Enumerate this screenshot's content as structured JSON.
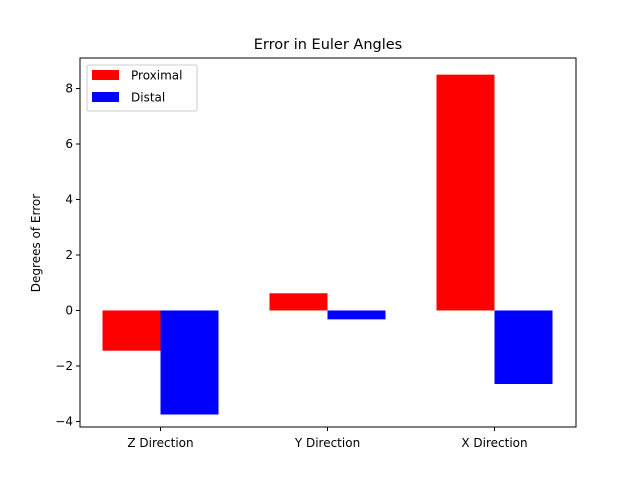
{
  "chart_data": {
    "type": "bar",
    "title": "Error in Euler Angles",
    "xlabel": "",
    "ylabel": "Degrees of Error",
    "categories": [
      "Z Direction",
      "Y Direction",
      "X Direction"
    ],
    "series": [
      {
        "name": "Proximal",
        "color": "#ff0000",
        "values": [
          -1.45,
          0.62,
          8.5
        ]
      },
      {
        "name": "Distal",
        "color": "#0000ff",
        "values": [
          -3.75,
          -0.32,
          -2.65
        ]
      }
    ],
    "ylim": [
      -4.2,
      9.1
    ],
    "yticks": [
      -4,
      -2,
      0,
      2,
      4,
      6,
      8
    ],
    "legend": "top-left",
    "grid": false
  }
}
